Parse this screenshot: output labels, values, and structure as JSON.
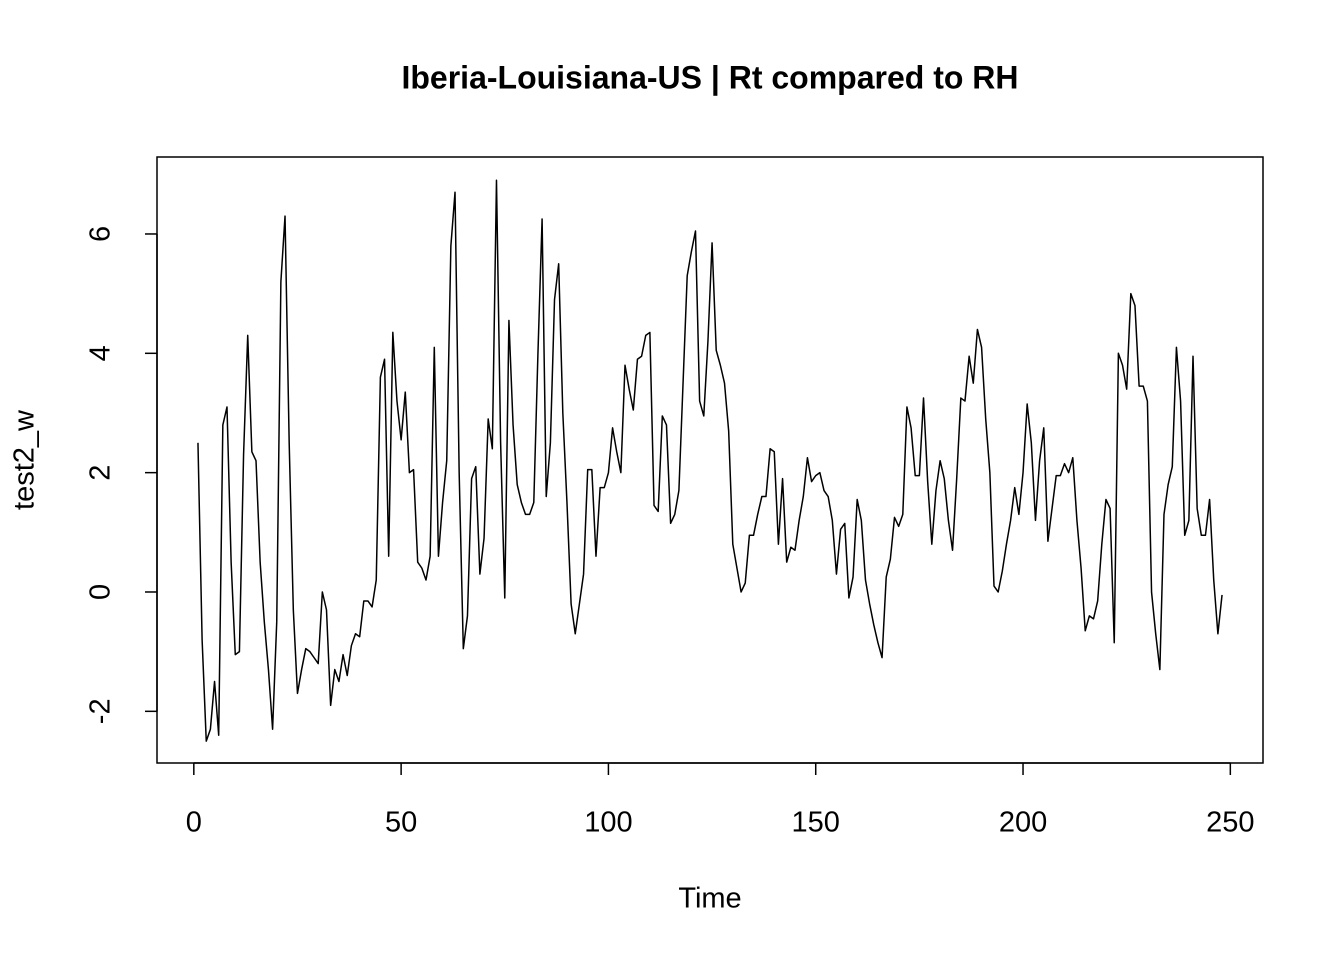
{
  "chart_data": {
    "type": "line",
    "title": "Iberia-Louisiana-US | Rt compared to RH",
    "xlabel": "Time",
    "ylabel": "test2_w",
    "color": "#000000",
    "xlim": [
      -8.88,
      257.88
    ],
    "ylim": [
      -2.866,
      7.29
    ],
    "xticks": [
      0,
      50,
      100,
      150,
      200,
      250
    ],
    "yticks": [
      -2,
      0,
      2,
      4,
      6
    ],
    "x": [
      1,
      2,
      3,
      4,
      5,
      6,
      7,
      8,
      9,
      10,
      11,
      12,
      13,
      14,
      15,
      16,
      17,
      18,
      19,
      20,
      21,
      22,
      23,
      24,
      25,
      26,
      27,
      28,
      29,
      30,
      31,
      32,
      33,
      34,
      35,
      36,
      37,
      38,
      39,
      40,
      41,
      42,
      43,
      44,
      45,
      46,
      47,
      48,
      49,
      50,
      51,
      52,
      53,
      54,
      55,
      56,
      57,
      58,
      59,
      60,
      61,
      62,
      63,
      64,
      65,
      66,
      67,
      68,
      69,
      70,
      71,
      72,
      73,
      74,
      75,
      76,
      77,
      78,
      79,
      80,
      81,
      82,
      83,
      84,
      85,
      86,
      87,
      88,
      89,
      90,
      91,
      92,
      93,
      94,
      95,
      96,
      97,
      98,
      99,
      100,
      101,
      102,
      103,
      104,
      105,
      106,
      107,
      108,
      109,
      110,
      111,
      112,
      113,
      114,
      115,
      116,
      117,
      118,
      119,
      120,
      121,
      122,
      123,
      124,
      125,
      126,
      127,
      128,
      129,
      130,
      131,
      132,
      133,
      134,
      135,
      136,
      137,
      138,
      139,
      140,
      141,
      142,
      143,
      144,
      145,
      146,
      147,
      148,
      149,
      150,
      151,
      152,
      153,
      154,
      155,
      156,
      157,
      158,
      159,
      160,
      161,
      162,
      163,
      164,
      165,
      166,
      167,
      168,
      169,
      170,
      171,
      172,
      173,
      174,
      175,
      176,
      177,
      178,
      179,
      180,
      181,
      182,
      183,
      184,
      185,
      186,
      187,
      188,
      189,
      190,
      191,
      192,
      193,
      194,
      195,
      196,
      197,
      198,
      199,
      200,
      201,
      202,
      203,
      204,
      205,
      206,
      207,
      208,
      209,
      210,
      211,
      212,
      213,
      214,
      215,
      216,
      217,
      218,
      219,
      220,
      221,
      222,
      223,
      224,
      225,
      226,
      227,
      228,
      229,
      230,
      231,
      232,
      233,
      234,
      235,
      236,
      237,
      238,
      239,
      240,
      241,
      242,
      243,
      244,
      245,
      246,
      247,
      248
    ],
    "values": [
      2.5,
      -0.8,
      -2.5,
      -2.3,
      -1.5,
      -2.4,
      2.8,
      3.1,
      0.5,
      -1.05,
      -1.0,
      2.3,
      4.3,
      2.35,
      2.2,
      0.5,
      -0.5,
      -1.3,
      -2.3,
      -0.5,
      5.2,
      6.3,
      2.5,
      -0.3,
      -1.7,
      -1.3,
      -0.95,
      -1.0,
      -1.1,
      -1.2,
      0.0,
      -0.3,
      -1.9,
      -1.3,
      -1.5,
      -1.05,
      -1.4,
      -0.9,
      -0.7,
      -0.75,
      -0.15,
      -0.15,
      -0.25,
      0.2,
      3.6,
      3.9,
      0.6,
      4.35,
      3.2,
      2.55,
      3.35,
      2.0,
      2.05,
      0.5,
      0.4,
      0.2,
      0.6,
      4.1,
      0.6,
      1.5,
      2.2,
      5.8,
      6.7,
      2.0,
      -0.95,
      -0.4,
      1.9,
      2.1,
      0.3,
      0.9,
      2.9,
      2.4,
      6.9,
      2.5,
      -0.1,
      4.55,
      2.8,
      1.8,
      1.5,
      1.3,
      1.3,
      1.5,
      4.0,
      6.25,
      1.6,
      2.5,
      4.9,
      5.5,
      3.0,
      1.5,
      -0.2,
      -0.7,
      -0.2,
      0.3,
      2.05,
      2.05,
      0.6,
      1.75,
      1.75,
      2.0,
      2.75,
      2.35,
      2.0,
      3.8,
      3.4,
      3.05,
      3.9,
      3.95,
      4.3,
      4.35,
      1.45,
      1.35,
      2.95,
      2.8,
      1.15,
      1.3,
      1.7,
      3.5,
      5.3,
      5.7,
      6.05,
      3.2,
      2.95,
      4.2,
      5.85,
      4.05,
      3.8,
      3.5,
      2.7,
      0.8,
      0.4,
      0.0,
      0.15,
      0.95,
      0.95,
      1.3,
      1.6,
      1.6,
      2.4,
      2.35,
      0.8,
      1.9,
      0.5,
      0.75,
      0.7,
      1.2,
      1.6,
      2.25,
      1.85,
      1.95,
      2.0,
      1.7,
      1.6,
      1.2,
      0.3,
      1.05,
      1.15,
      -0.1,
      0.25,
      1.55,
      1.2,
      0.2,
      -0.2,
      -0.55,
      -0.85,
      -1.1,
      0.25,
      0.55,
      1.25,
      1.1,
      1.3,
      3.1,
      2.75,
      1.95,
      1.95,
      3.25,
      1.85,
      0.8,
      1.7,
      2.2,
      1.9,
      1.2,
      0.7,
      1.9,
      3.25,
      3.2,
      3.95,
      3.5,
      4.4,
      4.1,
      2.9,
      2.0,
      0.1,
      0.0,
      0.35,
      0.8,
      1.2,
      1.75,
      1.3,
      2.0,
      3.15,
      2.5,
      1.2,
      2.2,
      2.75,
      0.85,
      1.4,
      1.95,
      1.95,
      2.15,
      2.0,
      2.25,
      1.2,
      0.4,
      -0.65,
      -0.4,
      -0.45,
      -0.15,
      0.8,
      1.55,
      1.4,
      -0.85,
      4.0,
      3.8,
      3.4,
      5.0,
      4.8,
      3.45,
      3.45,
      3.2,
      0.0,
      -0.7,
      -1.3,
      1.3,
      1.8,
      2.1,
      4.1,
      3.2,
      0.95,
      1.2,
      3.95,
      1.4,
      0.95,
      0.95,
      1.55,
      0.2,
      -0.7,
      -0.05
    ]
  }
}
